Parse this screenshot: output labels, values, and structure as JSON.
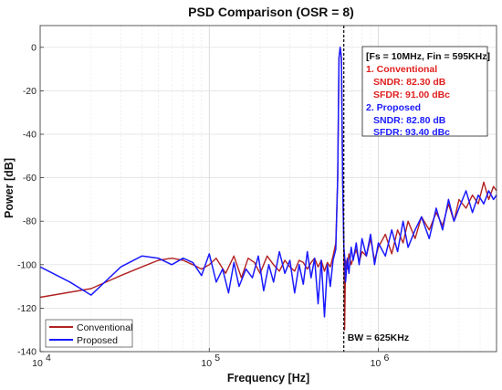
{
  "chart_data": {
    "type": "line",
    "title": "PSD Comparison (OSR = 8)",
    "xlabel": "Frequency [Hz]",
    "ylabel": "Power [dB]",
    "x_scale": "log",
    "xlim": [
      10000,
      5000000
    ],
    "ylim": [
      -140,
      10
    ],
    "x_ticks": [
      {
        "value": 10000,
        "base": "10",
        "exp": "4"
      },
      {
        "value": 100000,
        "base": "10",
        "exp": "5"
      },
      {
        "value": 1000000,
        "base": "10",
        "exp": "6"
      }
    ],
    "y_ticks": [
      0,
      -20,
      -40,
      -60,
      -80,
      -100,
      -120,
      -140
    ],
    "grid": true,
    "legend_position": "bottom-left",
    "series": [
      {
        "name": "Conventional",
        "color": "#b22222",
        "x": [
          10000,
          20000,
          30000,
          40000,
          50000,
          60000,
          70000,
          80000,
          90000,
          100000,
          110000,
          125000,
          140000,
          155000,
          170000,
          185000,
          200000,
          220000,
          240000,
          260000,
          280000,
          300000,
          320000,
          340000,
          360000,
          380000,
          400000,
          420000,
          440000,
          460000,
          480000,
          500000,
          520000,
          540000,
          560000,
          575000,
          585000,
          595000,
          605000,
          615000,
          625000,
          632000,
          640000,
          655000,
          670000,
          690000,
          710000,
          740000,
          770000,
          800000,
          850000,
          900000,
          950000,
          1000000,
          1100000,
          1200000,
          1300000,
          1400000,
          1500000,
          1650000,
          1800000,
          2000000,
          2200000,
          2400000,
          2600000,
          2800000,
          3000000,
          3300000,
          3600000,
          3900000,
          4200000,
          4500000,
          4800000,
          5000000
        ],
        "y": [
          -115,
          -111,
          -105,
          -101,
          -98,
          -97,
          -98,
          -100,
          -102,
          -100,
          -97,
          -104,
          -96,
          -106,
          -97,
          -99,
          -104,
          -96,
          -100,
          -103,
          -98,
          -101,
          -103,
          -98,
          -99,
          -102,
          -99,
          -97,
          -101,
          -98,
          -103,
          -99,
          -101,
          -96,
          -90,
          -60,
          -5,
          0,
          -5,
          -60,
          -90,
          -130,
          -98,
          -102,
          -95,
          -100,
          -97,
          -93,
          -99,
          -94,
          -96,
          -88,
          -98,
          -92,
          -86,
          -95,
          -84,
          -90,
          -80,
          -88,
          -78,
          -84,
          -76,
          -82,
          -72,
          -80,
          -70,
          -74,
          -68,
          -72,
          -62,
          -70,
          -64,
          -66
        ]
      },
      {
        "name": "Proposed",
        "color": "#1a1aff",
        "x": [
          10000,
          15000,
          20000,
          30000,
          40000,
          50000,
          60000,
          70000,
          80000,
          90000,
          100000,
          110000,
          120000,
          130000,
          140000,
          150000,
          165000,
          180000,
          195000,
          210000,
          225000,
          240000,
          260000,
          280000,
          300000,
          320000,
          340000,
          360000,
          380000,
          400000,
          420000,
          440000,
          460000,
          480000,
          500000,
          520000,
          540000,
          560000,
          575000,
          585000,
          595000,
          605000,
          615000,
          625000,
          632000,
          640000,
          655000,
          670000,
          690000,
          710000,
          740000,
          770000,
          800000,
          850000,
          900000,
          950000,
          1000000,
          1100000,
          1200000,
          1300000,
          1400000,
          1500000,
          1650000,
          1800000,
          2000000,
          2200000,
          2400000,
          2600000,
          2800000,
          3000000,
          3300000,
          3600000,
          3900000,
          4200000,
          4500000,
          4800000,
          5000000
        ],
        "y": [
          -101,
          -108,
          -114,
          -101,
          -96,
          -97,
          -100,
          -97,
          -99,
          -105,
          -95,
          -108,
          -102,
          -113,
          -99,
          -110,
          -102,
          -106,
          -96,
          -112,
          -100,
          -108,
          -94,
          -104,
          -98,
          -113,
          -100,
          -109,
          -94,
          -106,
          -97,
          -118,
          -98,
          -124,
          -100,
          -110,
          -98,
          -93,
          -60,
          -5,
          0,
          -5,
          -60,
          -92,
          -96,
          -108,
          -97,
          -104,
          -92,
          -98,
          -90,
          -100,
          -88,
          -96,
          -86,
          -100,
          -90,
          -96,
          -84,
          -94,
          -80,
          -92,
          -84,
          -78,
          -88,
          -74,
          -84,
          -70,
          -80,
          -74,
          -66,
          -76,
          -68,
          -72,
          -66,
          -70,
          -68
        ]
      }
    ],
    "markers": [
      {
        "x": 625000,
        "label": "BW = 625KHz"
      }
    ],
    "annotation": {
      "header": "[Fs = 10MHz, Fin = 595KHz]",
      "conventional_title": "1. Conventional",
      "conventional_sndr": "SNDR: 82.30 dB",
      "conventional_sfdr": "SFDR: 91.00 dBc",
      "proposed_title": "2. Proposed",
      "proposed_sndr": "SNDR: 82.80 dB",
      "proposed_sfdr": "SFDR: 93.40 dBc"
    }
  }
}
